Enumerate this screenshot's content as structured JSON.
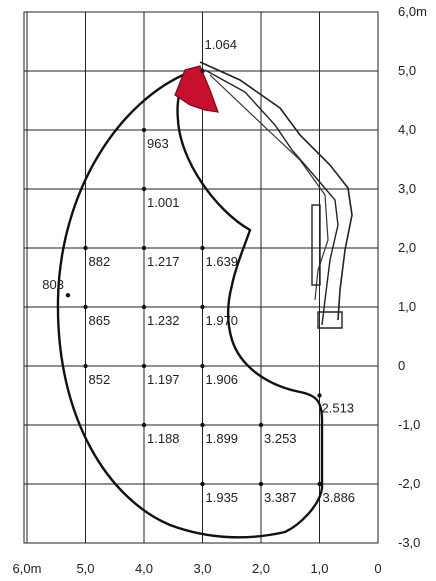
{
  "chart_data": {
    "type": "diagram",
    "x_axis": {
      "ticks": [
        {
          "value": 6,
          "label": "6,0m"
        },
        {
          "value": 5,
          "label": "5,0"
        },
        {
          "value": 4,
          "label": "4,0"
        },
        {
          "value": 3,
          "label": "3,0"
        },
        {
          "value": 2,
          "label": "2,0"
        },
        {
          "value": 1,
          "label": "1,0"
        },
        {
          "value": 0,
          "label": "0"
        }
      ]
    },
    "y_axis": {
      "ticks": [
        {
          "value": 6,
          "label": "6,0m"
        },
        {
          "value": 5,
          "label": "5,0"
        },
        {
          "value": 4,
          "label": "4,0"
        },
        {
          "value": 3,
          "label": "3,0"
        },
        {
          "value": 2,
          "label": "2,0"
        },
        {
          "value": 1,
          "label": "1,0"
        },
        {
          "value": 0,
          "label": "0"
        },
        {
          "value": -1,
          "label": "-1,0"
        },
        {
          "value": -2,
          "label": "-2,0"
        },
        {
          "value": -3,
          "label": "-3,0"
        }
      ]
    },
    "grid": true,
    "values": [
      {
        "x": 3.0,
        "y": 5.0,
        "label": "1.064"
      },
      {
        "x": 4.0,
        "y": 4.0,
        "label": "963"
      },
      {
        "x": 4.0,
        "y": 3.0,
        "label": "1.001"
      },
      {
        "x": 5.0,
        "y": 2.0,
        "label": "882"
      },
      {
        "x": 4.0,
        "y": 2.0,
        "label": "1.217"
      },
      {
        "x": 3.0,
        "y": 2.0,
        "label": "1.639"
      },
      {
        "x": 5.3,
        "y": 1.2,
        "label": "803"
      },
      {
        "x": 5.0,
        "y": 1.0,
        "label": "865"
      },
      {
        "x": 4.0,
        "y": 1.0,
        "label": "1.232"
      },
      {
        "x": 3.0,
        "y": 1.0,
        "label": "1.970"
      },
      {
        "x": 5.0,
        "y": 0.0,
        "label": "852"
      },
      {
        "x": 4.0,
        "y": 0.0,
        "label": "1.197"
      },
      {
        "x": 3.0,
        "y": 0.0,
        "label": "1.906"
      },
      {
        "x": 1.0,
        "y": -0.5,
        "label": "2.513"
      },
      {
        "x": 4.0,
        "y": -1.0,
        "label": "1.188"
      },
      {
        "x": 3.0,
        "y": -1.0,
        "label": "1.899"
      },
      {
        "x": 2.0,
        "y": -1.0,
        "label": "3.253"
      },
      {
        "x": 3.0,
        "y": -2.0,
        "label": "1.935"
      },
      {
        "x": 2.0,
        "y": -2.0,
        "label": "3.387"
      },
      {
        "x": 1.0,
        "y": -2.0,
        "label": "3.886"
      }
    ],
    "colors": {
      "bucket": "#c8102e",
      "lines": "#111111",
      "grid": "#222222"
    }
  }
}
